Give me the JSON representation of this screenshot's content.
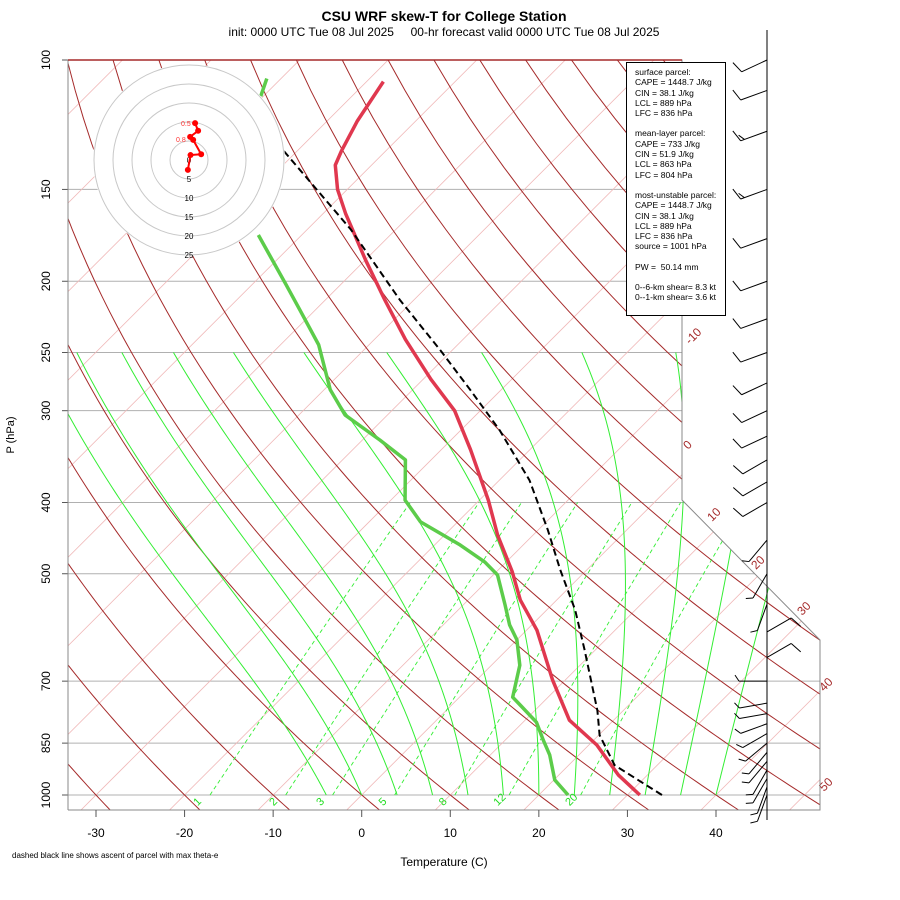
{
  "chart_data": {
    "type": "line",
    "title": "CSU WRF skew-T for College Station",
    "subtitle": "init: 0000 UTC Tue 08 Jul 2025     00-hr forecast valid 0000 UTC Tue 08 Jul 2025",
    "xlabel": "Temperature (C)",
    "ylabel": "P (hPa)",
    "footnote": "dashed black line shows ascent of parcel with max theta-e",
    "xlim": [
      -33,
      45
    ],
    "ylim_hpa": [
      1000,
      100
    ],
    "x_ticks": [
      "-30",
      "-20",
      "-10",
      "0",
      "10",
      "20",
      "30",
      "40"
    ],
    "x_tick_values": [
      -30,
      -20,
      -10,
      0,
      10,
      20,
      30,
      40
    ],
    "y_ticks": [
      "100",
      "150",
      "200",
      "250",
      "300",
      "400",
      "500",
      "700",
      "850",
      "1000"
    ],
    "y_tick_values": [
      100,
      150,
      200,
      250,
      300,
      400,
      500,
      700,
      850,
      1000
    ],
    "isotherm_labels": [
      "-10",
      "0",
      "10",
      "20",
      "30",
      "40",
      "50"
    ],
    "isotherm_label_values": [
      -10,
      0,
      10,
      20,
      30,
      40,
      50
    ],
    "mixing_ratio_labels": [
      "1",
      "2",
      "3",
      "5",
      "8",
      "12",
      "20"
    ],
    "mixing_ratio_values": [
      1,
      2,
      3,
      5,
      8,
      12,
      20
    ],
    "series": [
      {
        "name": "temperature",
        "color": "#e0384f",
        "p": [
          1000,
          939,
          855,
          791,
          698,
          597,
          543,
          497,
          443,
          397,
          339,
          300,
          272,
          240,
          212,
          187,
          162,
          150,
          139,
          133,
          121,
          107
        ],
        "t": [
          31.4,
          26.7,
          20.9,
          15.0,
          8.6,
          1.2,
          -4.1,
          -8.2,
          -14.0,
          -19.0,
          -26.7,
          -32.9,
          -39.1,
          -46.5,
          -53.3,
          -60.0,
          -67.4,
          -71.1,
          -74.1,
          -75.0,
          -76.6,
          -78.1
        ]
      },
      {
        "name": "dewpoint",
        "color": "#5ccc4a",
        "p": [
          1000,
          954,
          882,
          842,
          796,
          754,
          736,
          666,
          615,
          587,
          551,
          502,
          482,
          457,
          425,
          397,
          350,
          329,
          304,
          281,
          244,
          219,
          202,
          173
        ],
        "t": [
          23.3,
          20.1,
          16.7,
          14.3,
          11.5,
          7.7,
          6.0,
          3.2,
          0.0,
          -2.5,
          -5.3,
          -9.5,
          -12.4,
          -17.1,
          -24.2,
          -28.4,
          -32.9,
          -38.0,
          -44.8,
          -49.3,
          -55.7,
          -61.7,
          -66.2,
          -74.9
        ]
      },
      {
        "name": "dewpoint-upper",
        "color": "#5ccc4a",
        "p": [
          112,
          106
        ],
        "t": [
          -90.3,
          -91.6
        ]
      },
      {
        "name": "parcel",
        "color": "#000000",
        "dashed": true,
        "p": [
          1000,
          911,
          829,
          768,
          635,
          560,
          494,
          436,
          373,
          319,
          281,
          248,
          212,
          170,
          133
        ],
        "t": [
          33.9,
          25.2,
          20.1,
          17.1,
          8.8,
          3.2,
          -3.0,
          -8.9,
          -16.6,
          -25.6,
          -33.5,
          -41.4,
          -51.6,
          -65.1,
          -81.5
        ]
      }
    ],
    "hodograph": {
      "ring_labels": [
        "0",
        "5",
        "10",
        "15",
        "20",
        "25"
      ],
      "ring_values": [
        0,
        5,
        10,
        15,
        20,
        25
      ],
      "u": [
        -0.3,
        0.4,
        3.2,
        1.1,
        0.3,
        2.4,
        1.6
      ],
      "v": [
        -2.6,
        1.3,
        1.5,
        5.3,
        6.1,
        7.7,
        9.7
      ],
      "point_labels": [
        "0.5",
        "0.8"
      ]
    },
    "wind_barbs": [
      {
        "p": 1000,
        "dir": 200,
        "spd": 5
      },
      {
        "p": 975,
        "dir": 200,
        "spd": 5
      },
      {
        "p": 950,
        "dir": 210,
        "spd": 5
      },
      {
        "p": 925,
        "dir": 210,
        "spd": 5
      },
      {
        "p": 900,
        "dir": 220,
        "spd": 5
      },
      {
        "p": 875,
        "dir": 220,
        "spd": 5
      },
      {
        "p": 850,
        "dir": 230,
        "spd": 5
      },
      {
        "p": 825,
        "dir": 240,
        "spd": 5
      },
      {
        "p": 800,
        "dir": 250,
        "spd": 5
      },
      {
        "p": 775,
        "dir": 260,
        "spd": 5
      },
      {
        "p": 750,
        "dir": 260,
        "spd": 5
      },
      {
        "p": 700,
        "dir": 270,
        "spd": 5
      },
      {
        "p": 650,
        "dir": 60,
        "spd": 10
      },
      {
        "p": 600,
        "dir": 60,
        "spd": 10
      },
      {
        "p": 550,
        "dir": 200,
        "spd": 5
      },
      {
        "p": 500,
        "dir": 210,
        "spd": 5
      },
      {
        "p": 450,
        "dir": 220,
        "spd": 5
      },
      {
        "p": 400,
        "dir": 240,
        "spd": 10
      },
      {
        "p": 375,
        "dir": 240,
        "spd": 10
      },
      {
        "p": 350,
        "dir": 240,
        "spd": 10
      },
      {
        "p": 325,
        "dir": 245,
        "spd": 10
      },
      {
        "p": 300,
        "dir": 245,
        "spd": 10
      },
      {
        "p": 275,
        "dir": 245,
        "spd": 10
      },
      {
        "p": 250,
        "dir": 250,
        "spd": 10
      },
      {
        "p": 225,
        "dir": 250,
        "spd": 10
      },
      {
        "p": 200,
        "dir": 250,
        "spd": 10
      },
      {
        "p": 175,
        "dir": 250,
        "spd": 10
      },
      {
        "p": 150,
        "dir": 250,
        "spd": 15
      },
      {
        "p": 125,
        "dir": 250,
        "spd": 15
      },
      {
        "p": 110,
        "dir": 250,
        "spd": 10
      },
      {
        "p": 100,
        "dir": 245,
        "spd": 10
      }
    ]
  },
  "stats": {
    "lines": [
      "surface parcel:",
      "CAPE = 1448.7 J/kg",
      "CIN = 38.1 J/kg",
      "LCL = 889 hPa",
      "LFC = 836 hPa",
      "",
      "mean-layer parcel:",
      "CAPE = 733 J/kg",
      "CIN = 51.9 J/kg",
      "LCL = 863 hPa",
      "LFC = 804 hPa",
      "",
      "most-unstable parcel:",
      "CAPE = 1448.7 J/kg",
      "CIN = 38.1 J/kg",
      "LCL = 889 hPa",
      "LFC = 836 hPa",
      "source = 1001 hPa",
      "",
      "PW =  50.14 mm",
      "",
      "0--6-km shear= 8.3 kt",
      "0--1-km shear= 3.6 kt"
    ]
  }
}
